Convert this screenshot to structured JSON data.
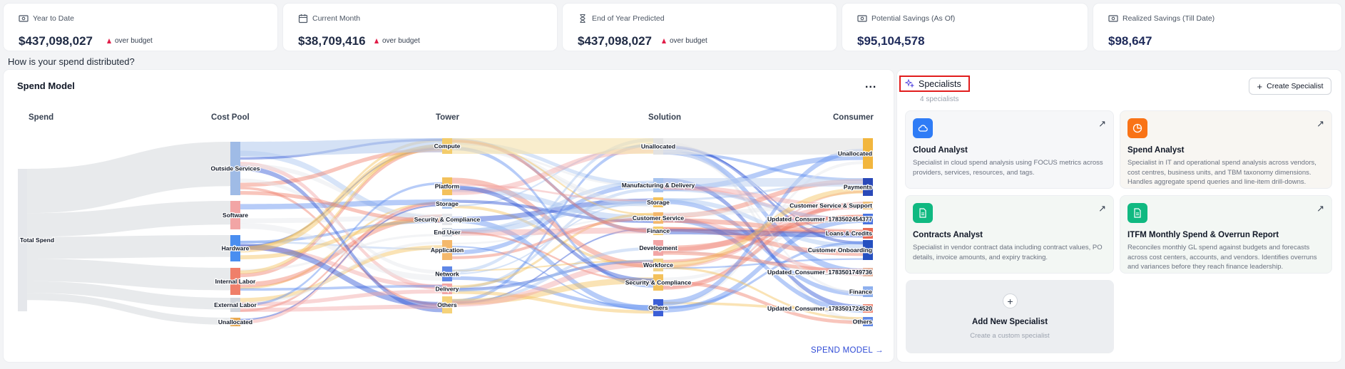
{
  "kpis": [
    {
      "label": "Year to Date",
      "value": "$437,098,027",
      "badge": "over budget",
      "icon": "money-icon"
    },
    {
      "label": "Current Month",
      "value": "$38,709,416",
      "badge": "over budget",
      "icon": "calendar-icon"
    },
    {
      "label": "End of Year Predicted",
      "value": "$437,098,027",
      "badge": "over budget",
      "icon": "hourglass-icon"
    },
    {
      "label": "Potential Savings (As Of)",
      "value": "$95,104,578",
      "icon": "money-icon"
    },
    {
      "label": "Realized Savings (Till Date)",
      "value": "$98,647",
      "icon": "money-icon"
    }
  ],
  "section_question": "How is your spend distributed?",
  "spend_model": {
    "title": "Spend Model",
    "more": "...",
    "link": "SPEND MODEL →",
    "columns": [
      "Spend",
      "Cost Pool",
      "Tower",
      "Solution",
      "Consumer"
    ],
    "spend_nodes": [
      "Total Spend"
    ],
    "cost_pool_nodes": [
      "Outside Services",
      "Software",
      "Hardware",
      "Internal Labor",
      "External Labor",
      "Unallocated"
    ],
    "tower_nodes": [
      "Compute",
      "Platform",
      "Storage",
      "Security & Compliance",
      "End User",
      "Application",
      "Network",
      "Delivery",
      "Others"
    ],
    "solution_nodes": [
      "Unallocated",
      "Manufacturing & Delivery",
      "Storage",
      "Customer Service",
      "Finance",
      "Development",
      "Workforce",
      "Security & Compliance",
      "Others"
    ],
    "consumer_nodes": [
      "Unallocated",
      "Payments",
      "Customer Service & Support",
      "Updated_Consumer_1783502454377",
      "Loans & Credits",
      "Customer Onboarding",
      "Updated_Consumer_1783501749736",
      "Finance",
      "Updated_Consumer_1783501724520",
      "Others"
    ]
  },
  "specialists": {
    "title": "Specialists",
    "count": "4 specialists",
    "create_label": "Create Specialist",
    "cards": [
      {
        "title": "Cloud Analyst",
        "desc": "Specialist in cloud spend analysis using FOCUS metrics across providers, services, resources, and tags.",
        "icon": "cloud-icon",
        "color": "#2f7cf6"
      },
      {
        "title": "Spend Analyst",
        "desc": "Specialist in IT and operational spend analysis across vendors, cost centres, business units, and TBM taxonomy dimensions. Handles aggregate spend queries and line-item drill-downs.",
        "icon": "pie-chart-icon",
        "color": "#f97316"
      },
      {
        "title": "Contracts Analyst",
        "desc": "Specialist in vendor contract data including contract values, PO details, invoice amounts, and expiry tracking.",
        "icon": "document-icon",
        "color": "#10b981"
      },
      {
        "title": "ITFM Monthly Spend & Overrun Report",
        "desc": "Reconciles monthly GL spend against budgets and forecasts across cost centers, accounts, and vendors. Identifies overruns and variances before they reach finance leadership.",
        "icon": "document-icon",
        "color": "#10b981"
      }
    ],
    "add_title": "Add New Specialist",
    "add_sub": "Create a custom specialist",
    "add_icon": "plus-icon"
  }
}
